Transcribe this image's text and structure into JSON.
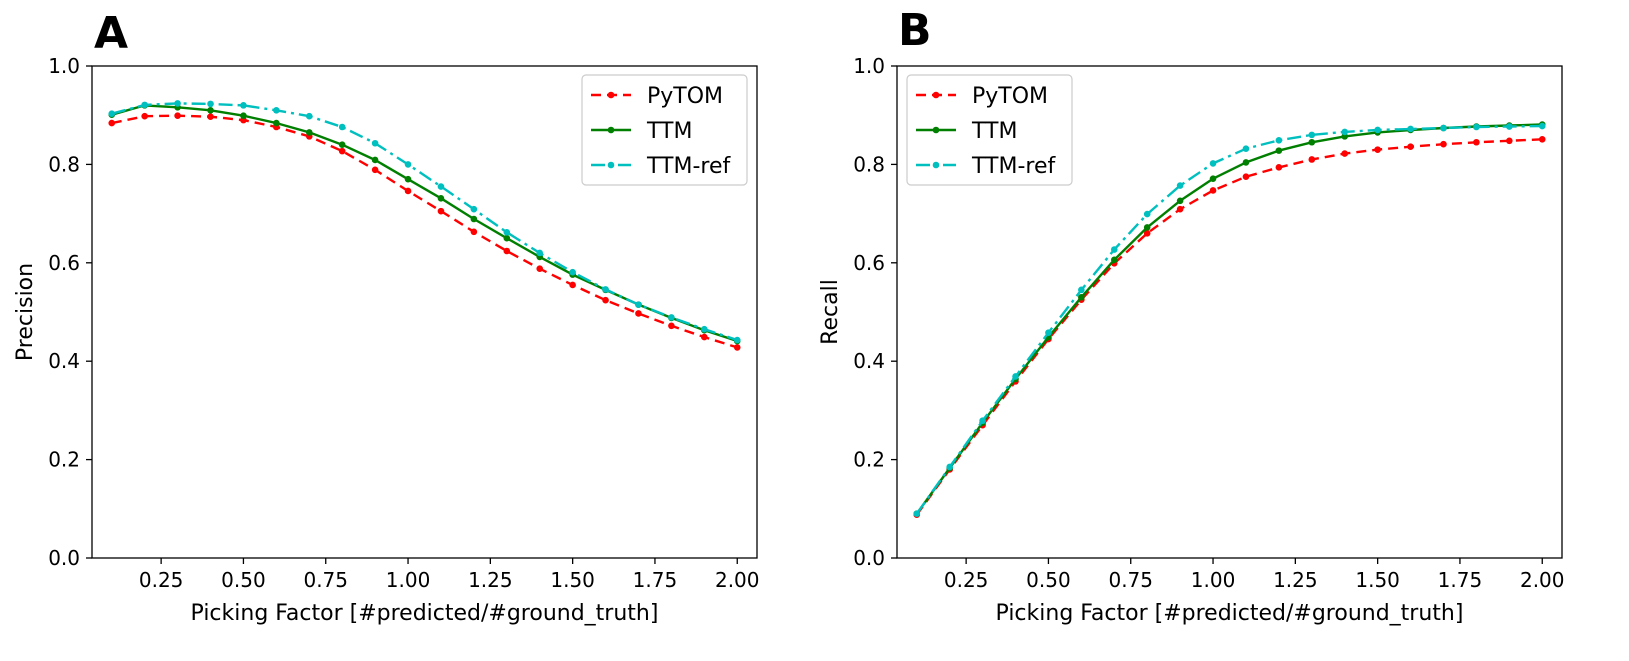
{
  "colors": {
    "PyTOM": "#ff0000",
    "TTM": "#007f00",
    "TTM-ref": "#00bfbf"
  },
  "chart_data": [
    {
      "panel": "A",
      "type": "line",
      "xlabel": "Picking Factor [#predicted/#ground_truth]",
      "ylabel": "Precision",
      "xlim": [
        0.04,
        2.06
      ],
      "ylim": [
        0.0,
        1.0
      ],
      "xticks": [
        0.25,
        0.5,
        0.75,
        1.0,
        1.25,
        1.5,
        1.75,
        2.0
      ],
      "xtick_labels": [
        "0.25",
        "0.50",
        "0.75",
        "1.00",
        "1.25",
        "1.50",
        "1.75",
        "2.00"
      ],
      "yticks": [
        0.0,
        0.2,
        0.4,
        0.6,
        0.8,
        1.0
      ],
      "ytick_labels": [
        "0.0",
        "0.2",
        "0.4",
        "0.6",
        "0.8",
        "1.0"
      ],
      "legend_position": "top-right",
      "x": [
        0.1,
        0.2,
        0.3,
        0.4,
        0.5,
        0.6,
        0.7,
        0.8,
        0.9,
        1.0,
        1.1,
        1.2,
        1.3,
        1.4,
        1.5,
        1.6,
        1.7,
        1.8,
        1.9,
        2.0
      ],
      "series": [
        {
          "name": "PyTOM",
          "style": "dashed",
          "values": [
            0.884,
            0.898,
            0.899,
            0.897,
            0.89,
            0.876,
            0.857,
            0.827,
            0.789,
            0.746,
            0.705,
            0.663,
            0.624,
            0.588,
            0.555,
            0.524,
            0.497,
            0.472,
            0.449,
            0.428
          ]
        },
        {
          "name": "TTM",
          "style": "solid",
          "values": [
            0.901,
            0.92,
            0.916,
            0.91,
            0.899,
            0.884,
            0.865,
            0.84,
            0.809,
            0.77,
            0.731,
            0.689,
            0.65,
            0.612,
            0.576,
            0.545,
            0.515,
            0.488,
            0.463,
            0.441
          ]
        },
        {
          "name": "TTM-ref",
          "style": "dashdot",
          "values": [
            0.903,
            0.921,
            0.924,
            0.923,
            0.92,
            0.91,
            0.898,
            0.876,
            0.843,
            0.8,
            0.755,
            0.709,
            0.662,
            0.62,
            0.581,
            0.546,
            0.515,
            0.489,
            0.465,
            0.443
          ]
        }
      ]
    },
    {
      "panel": "B",
      "type": "line",
      "xlabel": "Picking Factor [#predicted/#ground_truth]",
      "ylabel": "Recall",
      "xlim": [
        0.04,
        2.06
      ],
      "ylim": [
        0.0,
        1.0
      ],
      "xticks": [
        0.25,
        0.5,
        0.75,
        1.0,
        1.25,
        1.5,
        1.75,
        2.0
      ],
      "xtick_labels": [
        "0.25",
        "0.50",
        "0.75",
        "1.00",
        "1.25",
        "1.50",
        "1.75",
        "2.00"
      ],
      "yticks": [
        0.0,
        0.2,
        0.4,
        0.6,
        0.8,
        1.0
      ],
      "ytick_labels": [
        "0.0",
        "0.2",
        "0.4",
        "0.6",
        "0.8",
        "1.0"
      ],
      "legend_position": "top-left",
      "x": [
        0.1,
        0.2,
        0.3,
        0.4,
        0.5,
        0.6,
        0.7,
        0.8,
        0.9,
        1.0,
        1.1,
        1.2,
        1.3,
        1.4,
        1.5,
        1.6,
        1.7,
        1.8,
        1.9,
        2.0
      ],
      "series": [
        {
          "name": "PyTOM",
          "style": "dashed",
          "values": [
            0.088,
            0.18,
            0.27,
            0.359,
            0.445,
            0.525,
            0.599,
            0.66,
            0.709,
            0.747,
            0.775,
            0.794,
            0.81,
            0.822,
            0.83,
            0.836,
            0.841,
            0.845,
            0.848,
            0.851
          ]
        },
        {
          "name": "TTM",
          "style": "solid",
          "values": [
            0.09,
            0.183,
            0.275,
            0.364,
            0.449,
            0.53,
            0.606,
            0.672,
            0.726,
            0.771,
            0.804,
            0.828,
            0.845,
            0.857,
            0.865,
            0.87,
            0.874,
            0.877,
            0.879,
            0.881
          ]
        },
        {
          "name": "TTM-ref",
          "style": "dashdot",
          "values": [
            0.09,
            0.185,
            0.279,
            0.369,
            0.458,
            0.545,
            0.627,
            0.699,
            0.757,
            0.802,
            0.832,
            0.849,
            0.86,
            0.866,
            0.87,
            0.872,
            0.874,
            0.876,
            0.877,
            0.878
          ]
        }
      ]
    }
  ]
}
